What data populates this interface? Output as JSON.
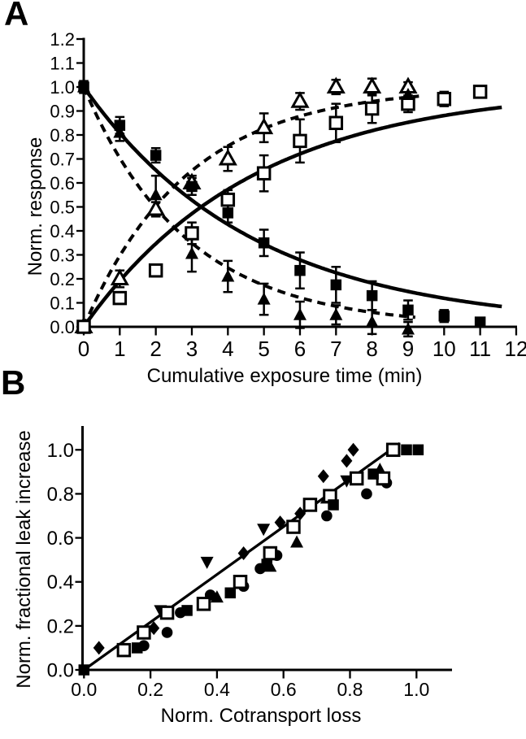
{
  "figure": {
    "panel_a": {
      "letter": "A"
    },
    "panel_b": {
      "letter": "B"
    },
    "ink_color": "#000000",
    "background": "#ffffff"
  },
  "chart_data": [
    {
      "id": "A",
      "type": "scatter",
      "title": "",
      "xlabel": "Cumulative exposure time (min)",
      "ylabel": "Norm. response",
      "xlim": [
        0,
        12
      ],
      "ylim": [
        0,
        1.2
      ],
      "grid": false,
      "legend": "none",
      "xticks": [
        "0",
        "1",
        "2",
        "3",
        "4",
        "5",
        "6",
        "7",
        "8",
        "9",
        "10",
        "11",
        "12"
      ],
      "yticks": [
        "0.0",
        "0.1",
        "0.2",
        "0.3",
        "0.4",
        "0.5",
        "0.6",
        "0.7",
        "0.8",
        "0.9",
        "1.0",
        "1.1",
        "1.2"
      ],
      "series": [
        {
          "name": "decay-filled-triangles",
          "marker": "triangle-up-filled",
          "points": [
            [
              0,
              1.0,
              0
            ],
            [
              1,
              0.81,
              0.035
            ],
            [
              2,
              0.55,
              0.08
            ],
            [
              3,
              0.305,
              0.075
            ],
            [
              4,
              0.21,
              0.065
            ],
            [
              5,
              0.115,
              0.065
            ],
            [
              6,
              0.05,
              0.055
            ],
            [
              7,
              0.05,
              0.04
            ],
            [
              8,
              0.02,
              0.05
            ],
            [
              9,
              -0.01,
              0.03
            ]
          ]
        },
        {
          "name": "rise-open-triangles",
          "marker": "triangle-up-open",
          "points": [
            [
              0,
              0,
              0
            ],
            [
              1,
              0.2,
              0.035
            ],
            [
              2,
              0.49,
              0.03
            ],
            [
              3,
              0.6,
              0.03
            ],
            [
              4,
              0.7,
              0.05
            ],
            [
              5,
              0.83,
              0.06
            ],
            [
              6,
              0.94,
              0.035
            ],
            [
              7,
              1.0,
              0.03
            ],
            [
              8,
              1.0,
              0.035
            ],
            [
              9,
              1.0,
              0.02
            ]
          ]
        },
        {
          "name": "rise-open-squares",
          "marker": "square-open",
          "points": [
            [
              0,
              0,
              0
            ],
            [
              1,
              0.12,
              0.02
            ],
            [
              2,
              0.235,
              0.025
            ],
            [
              3,
              0.39,
              0.045
            ],
            [
              4,
              0.53,
              0.04
            ],
            [
              5,
              0.64,
              0.075
            ],
            [
              6,
              0.775,
              0.09
            ],
            [
              7,
              0.85,
              0.08
            ],
            [
              8,
              0.91,
              0.06
            ],
            [
              9,
              0.93,
              0.035
            ],
            [
              10,
              0.95,
              0.03
            ],
            [
              11,
              0.98,
              0
            ]
          ]
        },
        {
          "name": "overlap-filled-triangle",
          "marker": "triangle-up-filled",
          "points": [
            [
              9,
              0.968,
              0
            ]
          ]
        },
        {
          "name": "decay-filled-squares",
          "marker": "square-filled",
          "points": [
            [
              0,
              1.0,
              0.025
            ],
            [
              1,
              0.84,
              0.035
            ],
            [
              2,
              0.715,
              0.03
            ],
            [
              3,
              0.585,
              0.035
            ],
            [
              4,
              0.475,
              0.04
            ],
            [
              5,
              0.35,
              0.055
            ],
            [
              6,
              0.235,
              0.075
            ],
            [
              7,
              0.175,
              0.075
            ],
            [
              8,
              0.13,
              0.06
            ],
            [
              9,
              0.07,
              0.04
            ],
            [
              10,
              0.045,
              0.025
            ],
            [
              11,
              0.02,
              0.015
            ]
          ]
        }
      ],
      "fit_curves": [
        {
          "name": "solid-exponential-decay",
          "style": "solid",
          "model": "exp-decay",
          "tau": 4.7,
          "t_range": [
            0,
            11.6
          ]
        },
        {
          "name": "dashed-exponential-decay",
          "style": "dashed",
          "model": "exp-decay",
          "tau": 2.85,
          "t_range": [
            0,
            9.2
          ]
        },
        {
          "name": "solid-exponential-rise",
          "style": "solid",
          "model": "exp-rise",
          "tau": 4.7,
          "plateau": 1.0,
          "t_range": [
            0,
            11.6
          ]
        },
        {
          "name": "dashed-exponential-rise",
          "style": "dashed",
          "model": "exp-rise",
          "tau": 2.85,
          "plateau": 1.0,
          "t_range": [
            0,
            9.3
          ]
        }
      ]
    },
    {
      "id": "B",
      "type": "scatter",
      "title": "",
      "xlabel": "Norm. Cotransport loss",
      "ylabel": "Norm. fractional leak increase",
      "xlim": [
        0,
        1.1
      ],
      "ylim": [
        0,
        1.1
      ],
      "grid": false,
      "legend": "none",
      "xticks": [
        "0.0",
        "0.2",
        "0.4",
        "0.6",
        "0.8",
        "1.0"
      ],
      "yticks": [
        "0.0",
        "0.2",
        "0.4",
        "0.6",
        "0.8",
        "1.0"
      ],
      "identity_line": {
        "x1": 0,
        "y1": 0,
        "x2": 0.95,
        "y2": 1.03
      },
      "series": [
        {
          "name": "filled-down-triangles",
          "marker": "triangle-down-filled",
          "points": [
            [
              0.23,
              0.27
            ],
            [
              0.37,
              0.49
            ],
            [
              0.54,
              0.64
            ],
            [
              0.79,
              0.86
            ]
          ]
        },
        {
          "name": "filled-up-triangles",
          "marker": "triangle-up-filled",
          "points": [
            [
              0.4,
              0.33
            ],
            [
              0.56,
              0.47
            ],
            [
              0.64,
              0.58
            ],
            [
              0.73,
              0.78
            ],
            [
              0.89,
              0.91
            ]
          ]
        },
        {
          "name": "filled-circles",
          "marker": "circle-filled",
          "points": [
            [
              0.18,
              0.11
            ],
            [
              0.25,
              0.17
            ],
            [
              0.29,
              0.26
            ],
            [
              0.38,
              0.34
            ],
            [
              0.48,
              0.38
            ],
            [
              0.53,
              0.46
            ],
            [
              0.58,
              0.52
            ],
            [
              0.73,
              0.7
            ],
            [
              0.85,
              0.8
            ],
            [
              0.91,
              0.85
            ]
          ]
        },
        {
          "name": "filled-diamonds",
          "marker": "diamond-filled",
          "points": [
            [
              0.045,
              0.1
            ],
            [
              0.21,
              0.19
            ],
            [
              0.48,
              0.53
            ],
            [
              0.59,
              0.67
            ],
            [
              0.65,
              0.71
            ],
            [
              0.72,
              0.88
            ],
            [
              0.79,
              0.95
            ],
            [
              0.81,
              1.0
            ]
          ]
        },
        {
          "name": "open-squares",
          "marker": "square-open",
          "points": [
            [
              0.12,
              0.09
            ],
            [
              0.18,
              0.17
            ],
            [
              0.25,
              0.26
            ],
            [
              0.36,
              0.3
            ],
            [
              0.47,
              0.4
            ],
            [
              0.56,
              0.53
            ],
            [
              0.63,
              0.65
            ],
            [
              0.68,
              0.75
            ],
            [
              0.74,
              0.79
            ],
            [
              0.82,
              0.87
            ],
            [
              0.9,
              0.87
            ],
            [
              0.93,
              1.0
            ]
          ]
        },
        {
          "name": "filled-squares",
          "marker": "square-filled",
          "points": [
            [
              0,
              0
            ],
            [
              0.16,
              0.1
            ],
            [
              0.31,
              0.27
            ],
            [
              0.44,
              0.35
            ],
            [
              0.55,
              0.48
            ],
            [
              0.75,
              0.75
            ],
            [
              0.87,
              0.89
            ],
            [
              0.97,
              1.0
            ],
            [
              1.005,
              1.0
            ]
          ]
        }
      ]
    }
  ]
}
